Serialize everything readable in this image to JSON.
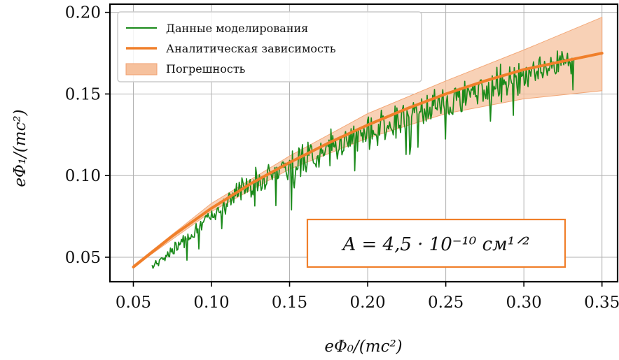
{
  "chart_data": {
    "type": "line",
    "xlabel": "eΦ₀/(mc²)",
    "ylabel": "eΦ₁/(mc²)",
    "xlim": [
      0.035,
      0.36
    ],
    "ylim": [
      0.035,
      0.205
    ],
    "xticks": [
      "0.05",
      "0.10",
      "0.15",
      "0.20",
      "0.25",
      "0.30",
      "0.35"
    ],
    "yticks": [
      "0.05",
      "0.10",
      "0.15",
      "0.20"
    ],
    "grid": true,
    "legend_position": "top-left",
    "annotation": "A = 4,5 · 10⁻¹⁰ см¹ᐟ²",
    "colors": {
      "sim": "#1a8a1a",
      "analytic": "#f07f2a",
      "band": "#f6c19d",
      "annotation_box": "#f07f2a"
    },
    "series": [
      {
        "name": "Данные моделирования",
        "kind": "noisy-line",
        "x_range": [
          0.062,
          0.332
        ],
        "trend": [
          [
            0.062,
            0.045
          ],
          [
            0.07,
            0.05
          ],
          [
            0.08,
            0.058
          ],
          [
            0.1,
            0.075
          ],
          [
            0.12,
            0.093
          ],
          [
            0.15,
            0.107
          ],
          [
            0.2,
            0.126
          ],
          [
            0.25,
            0.145
          ],
          [
            0.3,
            0.162
          ],
          [
            0.332,
            0.172
          ]
        ],
        "noise_amplitude": 0.012
      },
      {
        "name": "Аналитическая зависимость",
        "kind": "line",
        "x": [
          0.05,
          0.075,
          0.1,
          0.125,
          0.15,
          0.175,
          0.2,
          0.225,
          0.25,
          0.275,
          0.3,
          0.325,
          0.35
        ],
        "y": [
          0.044,
          0.063,
          0.08,
          0.095,
          0.108,
          0.12,
          0.131,
          0.141,
          0.15,
          0.158,
          0.165,
          0.17,
          0.175
        ]
      },
      {
        "name": "Погрешность",
        "kind": "band",
        "x": [
          0.05,
          0.1,
          0.15,
          0.2,
          0.25,
          0.3,
          0.35
        ],
        "lower": [
          0.044,
          0.078,
          0.104,
          0.123,
          0.138,
          0.147,
          0.152
        ],
        "upper": [
          0.045,
          0.083,
          0.112,
          0.138,
          0.158,
          0.177,
          0.197
        ]
      }
    ]
  }
}
